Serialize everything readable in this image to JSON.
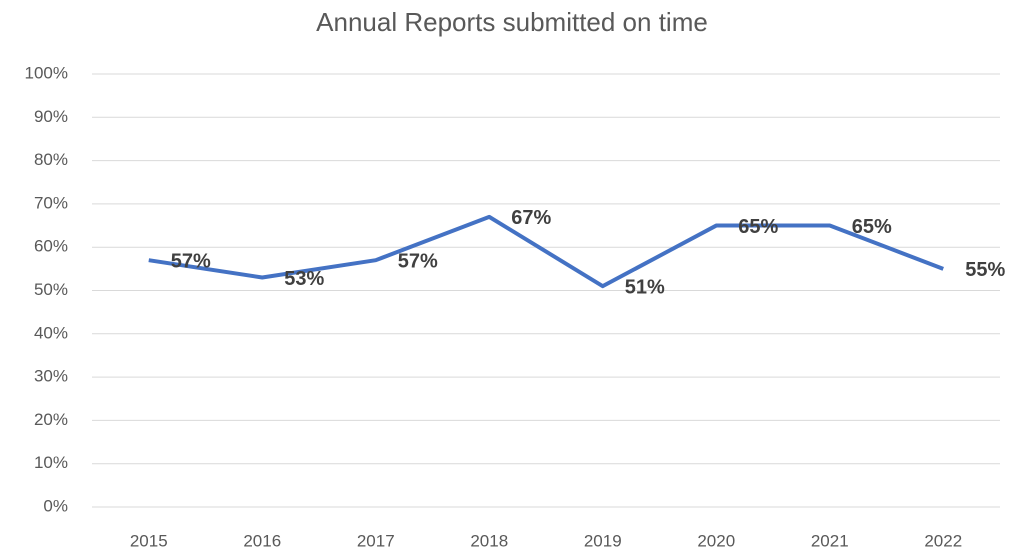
{
  "chart_data": {
    "type": "line",
    "title": "Annual Reports submitted on time",
    "categories": [
      "2015",
      "2016",
      "2017",
      "2018",
      "2019",
      "2020",
      "2021",
      "2022"
    ],
    "series": [
      {
        "name": "Annual Reports submitted on time",
        "color": "#4472c4",
        "values": [
          57,
          53,
          57,
          67,
          51,
          65,
          65,
          55
        ],
        "value_labels": [
          "57%",
          "53%",
          "57%",
          "67%",
          "51%",
          "65%",
          "65%",
          "55%"
        ]
      }
    ],
    "ylim": [
      0,
      100
    ],
    "yticks": [
      {
        "value": 0,
        "label": "0%"
      },
      {
        "value": 10,
        "label": "10%"
      },
      {
        "value": 20,
        "label": "20%"
      },
      {
        "value": 30,
        "label": "30%"
      },
      {
        "value": 40,
        "label": "40%"
      },
      {
        "value": 50,
        "label": "50%"
      },
      {
        "value": 60,
        "label": "60%"
      },
      {
        "value": 70,
        "label": "70%"
      },
      {
        "value": 80,
        "label": "80%"
      },
      {
        "value": 90,
        "label": "90%"
      },
      {
        "value": 100,
        "label": "100%"
      }
    ],
    "grid": true
  }
}
